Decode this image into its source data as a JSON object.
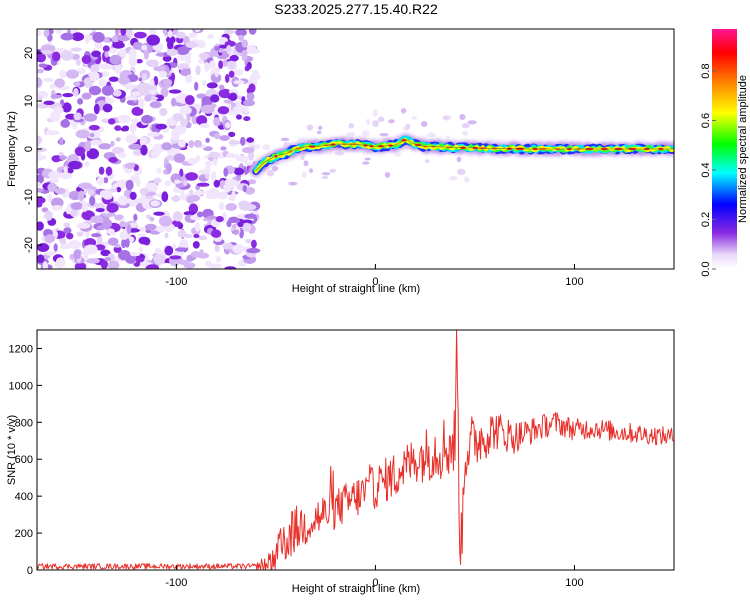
{
  "title": "S233.2025.277.15.40.R22",
  "chart_data": [
    {
      "type": "heatmap",
      "xlabel": "Height of straight line (km)",
      "ylabel": "Frequency (Hz)",
      "xlim": [
        -170,
        150
      ],
      "ylim": [
        -25,
        25
      ],
      "xticks": [
        -100,
        0,
        100
      ],
      "yticks": [
        -20,
        -10,
        0,
        10,
        20
      ],
      "noise_region_x": [
        -170,
        -60
      ],
      "ridge": {
        "x": [
          -60,
          -55,
          -50,
          -45,
          -40,
          -35,
          -30,
          -20,
          -10,
          0,
          10,
          15,
          20,
          25,
          30,
          40,
          50,
          60,
          80,
          100,
          120,
          150
        ],
        "frequency": [
          -4.5,
          -2.5,
          -1.5,
          -1,
          0,
          0.5,
          0.5,
          1,
          1,
          0.5,
          0.8,
          2,
          1,
          0.5,
          0.5,
          0.3,
          0.2,
          0.1,
          0,
          0,
          0,
          0
        ]
      },
      "colorbar": {
        "label": "Normalized spectral amplitude",
        "ticks": [
          "0.0",
          "0.2",
          "0.4",
          "0.6",
          "0.8"
        ],
        "range": [
          0,
          0.97
        ],
        "colors": [
          "#ffffff",
          "#8a2be2",
          "#0000ff",
          "#00ffff",
          "#00ff00",
          "#ffff00",
          "#ff8000",
          "#ff0000",
          "#ff1493"
        ]
      }
    },
    {
      "type": "line",
      "xlabel": "Height of straight line (km)",
      "ylabel": "SNR (10 * v/v)",
      "xlim": [
        -170,
        150
      ],
      "ylim": [
        0,
        1300
      ],
      "xticks": [
        -100,
        0,
        100
      ],
      "yticks": [
        0,
        200,
        400,
        600,
        800,
        1000,
        1200
      ],
      "color": "#e8302a",
      "trend": {
        "x": [
          -170,
          -60,
          -55,
          -50,
          -45,
          -40,
          -30,
          -20,
          -10,
          0,
          10,
          20,
          30,
          38,
          40,
          41,
          42,
          43,
          45,
          50,
          60,
          70,
          80,
          90,
          100,
          110,
          120,
          130,
          140,
          150
        ],
        "y": [
          20,
          20,
          20,
          60,
          160,
          220,
          280,
          330,
          390,
          450,
          520,
          600,
          650,
          680,
          700,
          1290,
          400,
          70,
          650,
          700,
          760,
          720,
          760,
          800,
          760,
          770,
          750,
          740,
          730,
          720
        ]
      },
      "noise": {
        "x": [
          -170,
          -60,
          -50,
          -40,
          -20,
          0,
          20,
          40,
          60,
          80,
          100,
          150
        ],
        "amplitude": [
          15,
          15,
          120,
          130,
          110,
          120,
          130,
          200,
          110,
          70,
          60,
          50
        ]
      }
    }
  ]
}
